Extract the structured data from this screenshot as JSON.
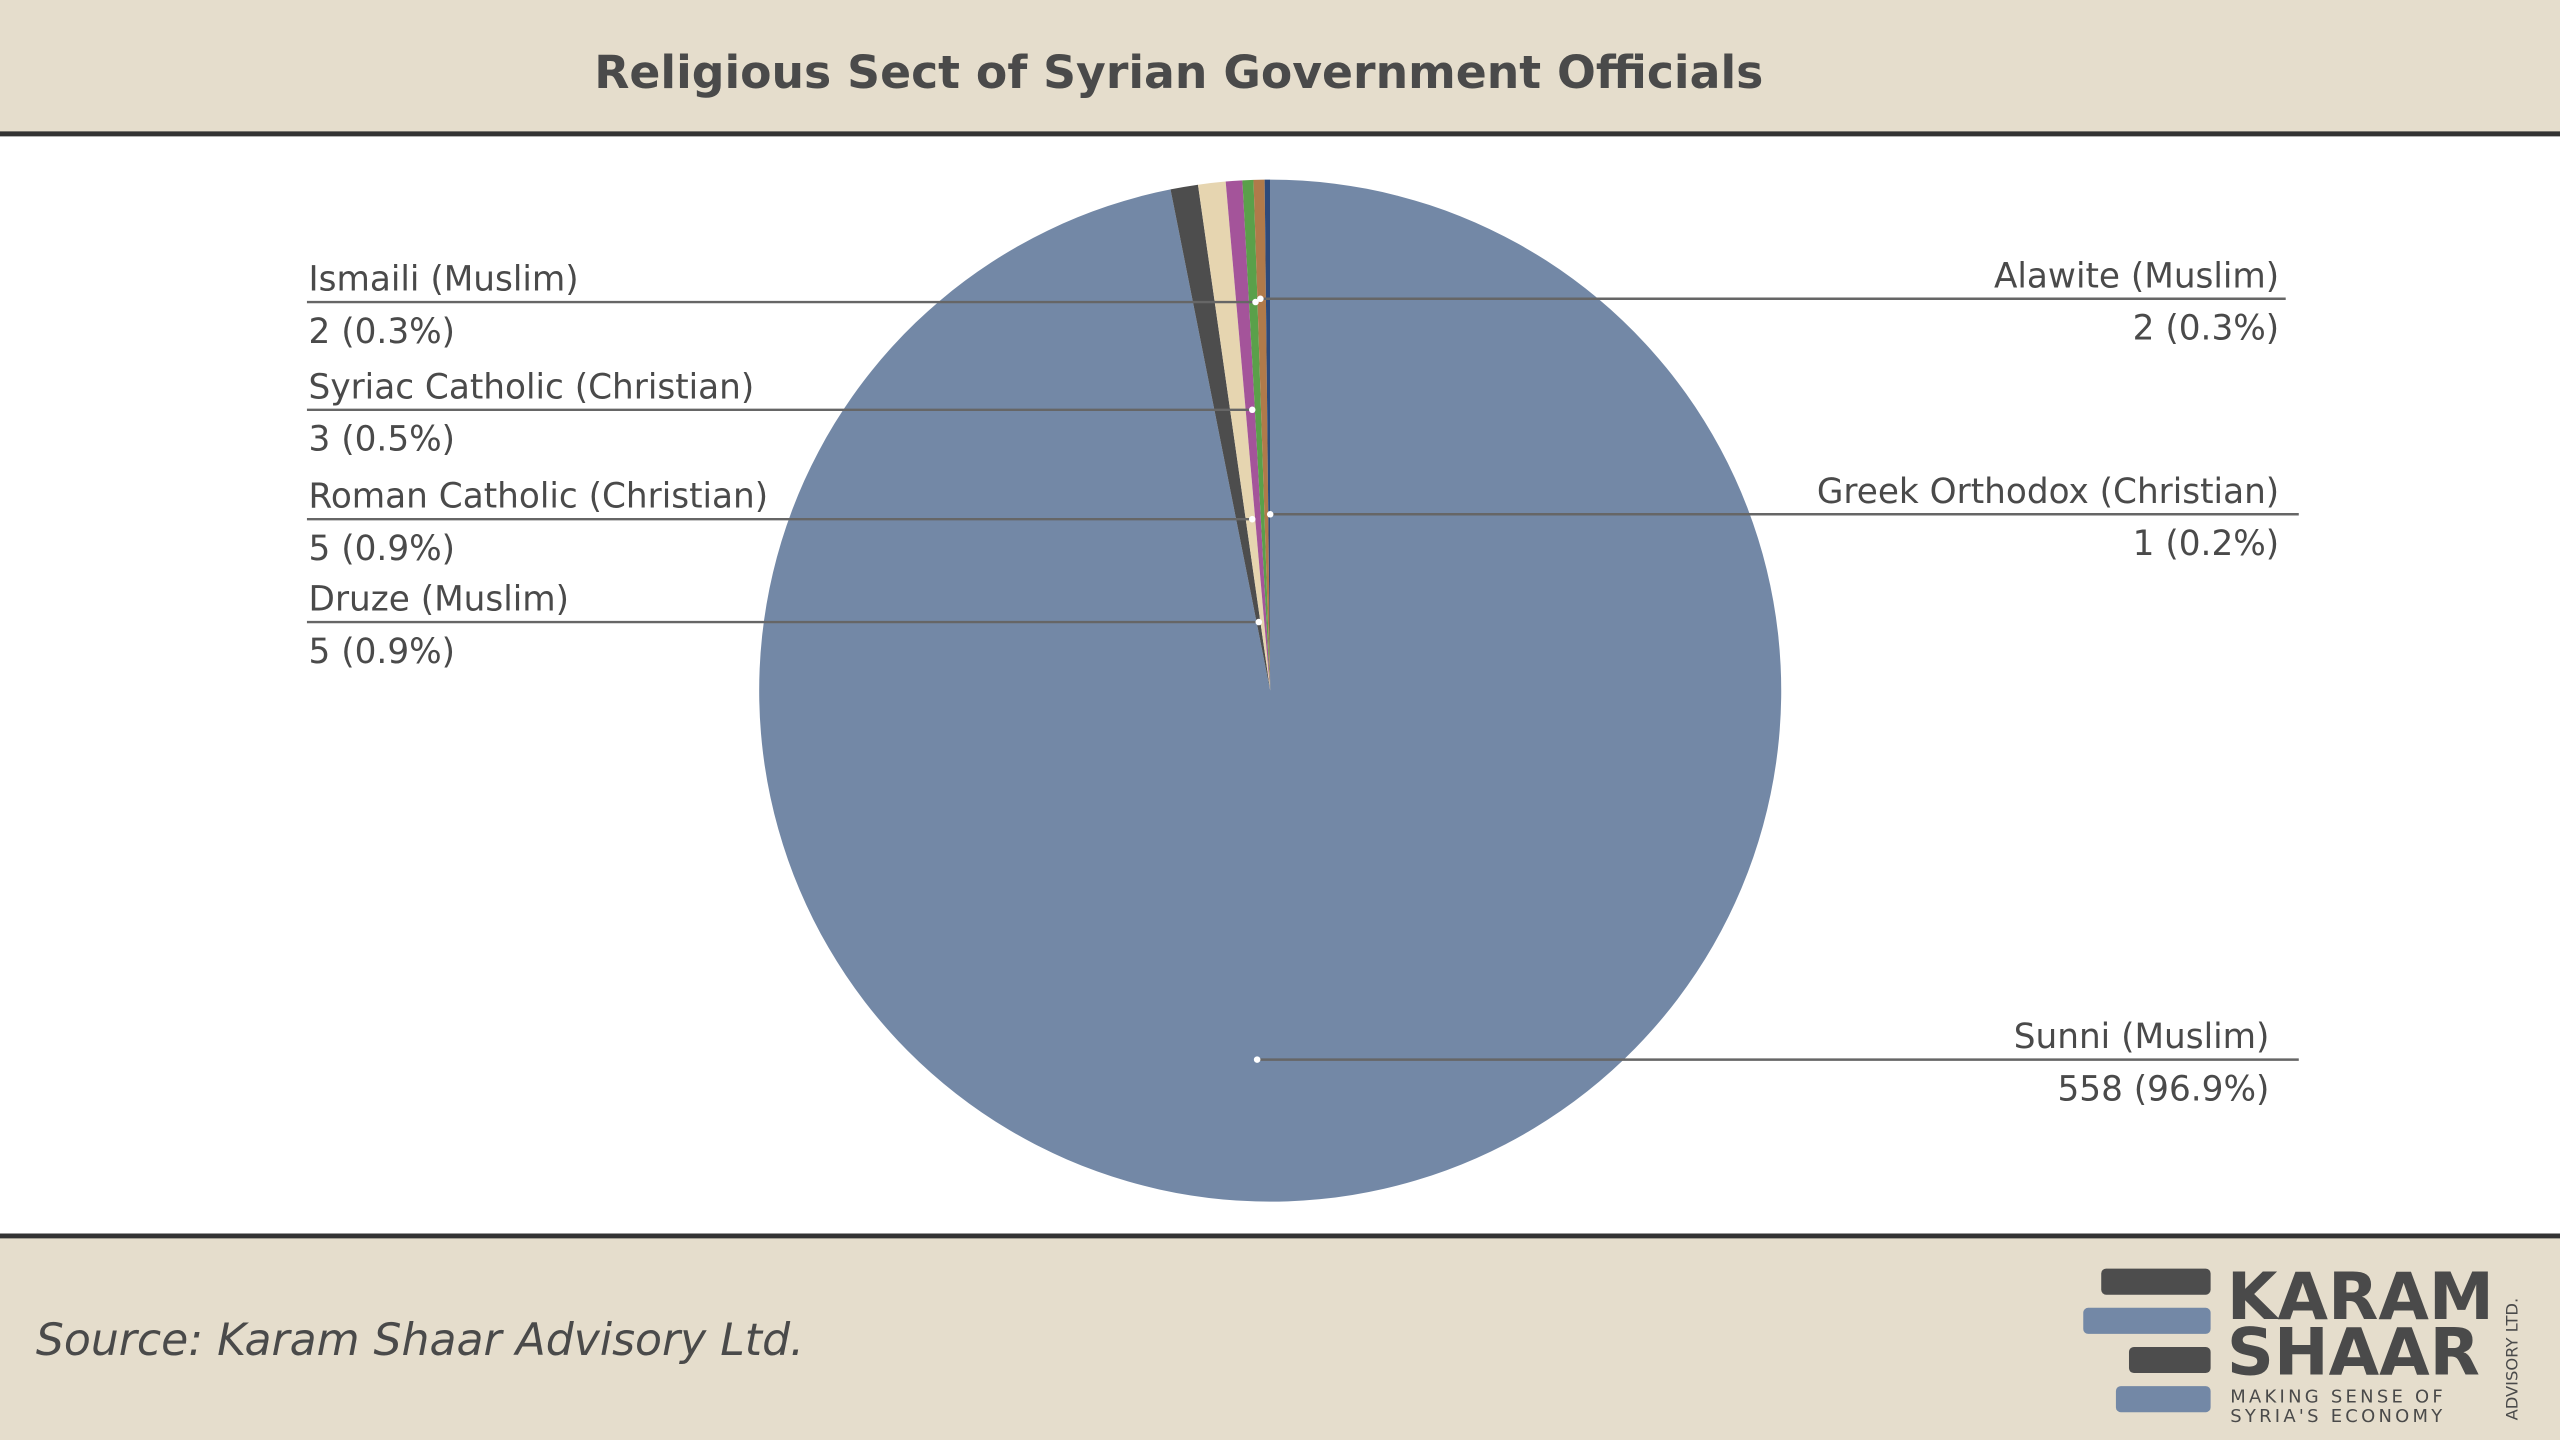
{
  "chart_data": {
    "type": "pie",
    "title": "Religious Sect of Syrian Government Officials",
    "categories": [
      "Sunni (Muslim)",
      "Druze (Muslim)",
      "Roman Catholic (Christian)",
      "Syriac Catholic (Christian)",
      "Ismaili (Muslim)",
      "Alawite (Muslim)",
      "Greek Orthodox (Christian)"
    ],
    "values": [
      558,
      5,
      5,
      3,
      2,
      2,
      1
    ],
    "value_labels": [
      "558 (96.9%)",
      "5 (0.9%)",
      "5 (0.9%)",
      "3 (0.5%)",
      "2 (0.3%)",
      "2 (0.3%)",
      "1 (0.2%)"
    ],
    "colors": [
      "#7388a6",
      "#4d4d4d",
      "#e6d5b0",
      "#a4549a",
      "#5aa04a",
      "#b07a4a",
      "#2e4a7a"
    ]
  },
  "source": "Source: Karam Shaar Advisory Ltd.",
  "logo": {
    "line1": "KARAM",
    "line2": "SHAAR",
    "tagline1": "MAKING SENSE OF",
    "tagline2": "SYRIA'S ECONOMY",
    "side": "ADVISORY LTD."
  }
}
